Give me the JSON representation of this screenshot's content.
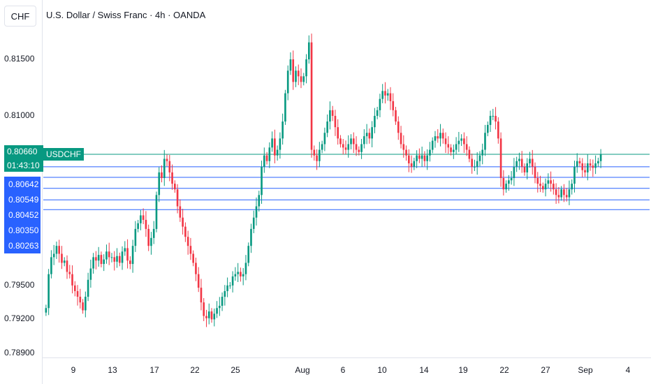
{
  "header": {
    "currency": "CHF",
    "title": "U.S. Dollar / Swiss Franc · 4h · OANDA"
  },
  "current_price": {
    "symbol": "USDCHF",
    "price": "0.80660",
    "countdown": "01:43:10"
  },
  "colors": {
    "up": "#089981",
    "down": "#f23645",
    "level_line": "#2962ff",
    "current_line": "#089981"
  },
  "chart_data": {
    "type": "candlestick",
    "y_ticks": [
      "0.81500",
      "0.81000",
      "0.79500",
      "0.79200",
      "0.78900"
    ],
    "x_ticks": [
      "9",
      "13",
      "17",
      "22",
      "25",
      "Aug",
      "6",
      "10",
      "14",
      "19",
      "22",
      "27",
      "Sep",
      "4"
    ],
    "level_lines": [
      0.80642,
      0.80549,
      0.80452,
      0.8035,
      0.80263
    ],
    "level_labels": [
      "0.80642",
      "0.80549",
      "0.80452",
      "0.80350",
      "0.80263"
    ],
    "ylim": [
      0.7887,
      0.8177
    ],
    "close_series": [
      0.793,
      0.796,
      0.7975,
      0.7978,
      0.7985,
      0.7978,
      0.797,
      0.7972,
      0.7962,
      0.796,
      0.795,
      0.7945,
      0.794,
      0.7935,
      0.7928,
      0.794,
      0.7955,
      0.7965,
      0.7975,
      0.7972,
      0.7977,
      0.7969,
      0.7973,
      0.798,
      0.7975,
      0.7975,
      0.7971,
      0.7976,
      0.797,
      0.798,
      0.7983,
      0.7972,
      0.7969,
      0.7985,
      0.8,
      0.8005,
      0.8012,
      0.8008,
      0.8,
      0.7985,
      0.7992,
      0.8,
      0.803,
      0.805,
      0.8045,
      0.8062,
      0.806,
      0.805,
      0.804,
      0.8035,
      0.802,
      0.801,
      0.8002,
      0.7993,
      0.7985,
      0.7978,
      0.797,
      0.796,
      0.7948,
      0.7935,
      0.7923,
      0.7921,
      0.7927,
      0.792,
      0.7925,
      0.793,
      0.7932,
      0.794,
      0.7945,
      0.795,
      0.795,
      0.7958,
      0.796,
      0.7962,
      0.7958,
      0.796,
      0.797,
      0.7985,
      0.8,
      0.801,
      0.802,
      0.803,
      0.8055,
      0.8065,
      0.806,
      0.8072,
      0.808,
      0.8065,
      0.807,
      0.808,
      0.8095,
      0.812,
      0.814,
      0.815,
      0.813,
      0.814,
      0.8135,
      0.813,
      0.8135,
      0.815,
      0.8165,
      0.807,
      0.8065,
      0.806,
      0.807,
      0.8075,
      0.8085,
      0.8095,
      0.8105,
      0.81,
      0.809,
      0.808,
      0.8075,
      0.8072,
      0.807,
      0.8075,
      0.808,
      0.8075,
      0.807,
      0.8068,
      0.8075,
      0.8082,
      0.8085,
      0.808,
      0.809,
      0.81,
      0.8105,
      0.8115,
      0.8122,
      0.8118,
      0.812,
      0.8113,
      0.8105,
      0.8095,
      0.8085,
      0.8075,
      0.807,
      0.8065,
      0.8058,
      0.8055,
      0.806,
      0.8065,
      0.8062,
      0.8065,
      0.806,
      0.8065,
      0.807,
      0.8078,
      0.8082,
      0.808,
      0.8085,
      0.808,
      0.8075,
      0.8072,
      0.8068,
      0.807,
      0.8075,
      0.8078,
      0.808,
      0.8075,
      0.807,
      0.8062,
      0.8055,
      0.8055,
      0.806,
      0.8065,
      0.807,
      0.8085,
      0.8092,
      0.81,
      0.81,
      0.8095,
      0.808,
      0.8045,
      0.8035,
      0.804,
      0.8043,
      0.8045,
      0.8055,
      0.806,
      0.8062,
      0.8055,
      0.805,
      0.8058,
      0.8062,
      0.8055,
      0.8045,
      0.804,
      0.8038,
      0.8035,
      0.804,
      0.8043,
      0.804,
      0.8035,
      0.803,
      0.8028,
      0.8035,
      0.803,
      0.8028,
      0.8035,
      0.804,
      0.8055,
      0.806,
      0.8058,
      0.8052,
      0.805,
      0.8058,
      0.8056,
      0.8054,
      0.8058,
      0.806,
      0.8066
    ]
  }
}
